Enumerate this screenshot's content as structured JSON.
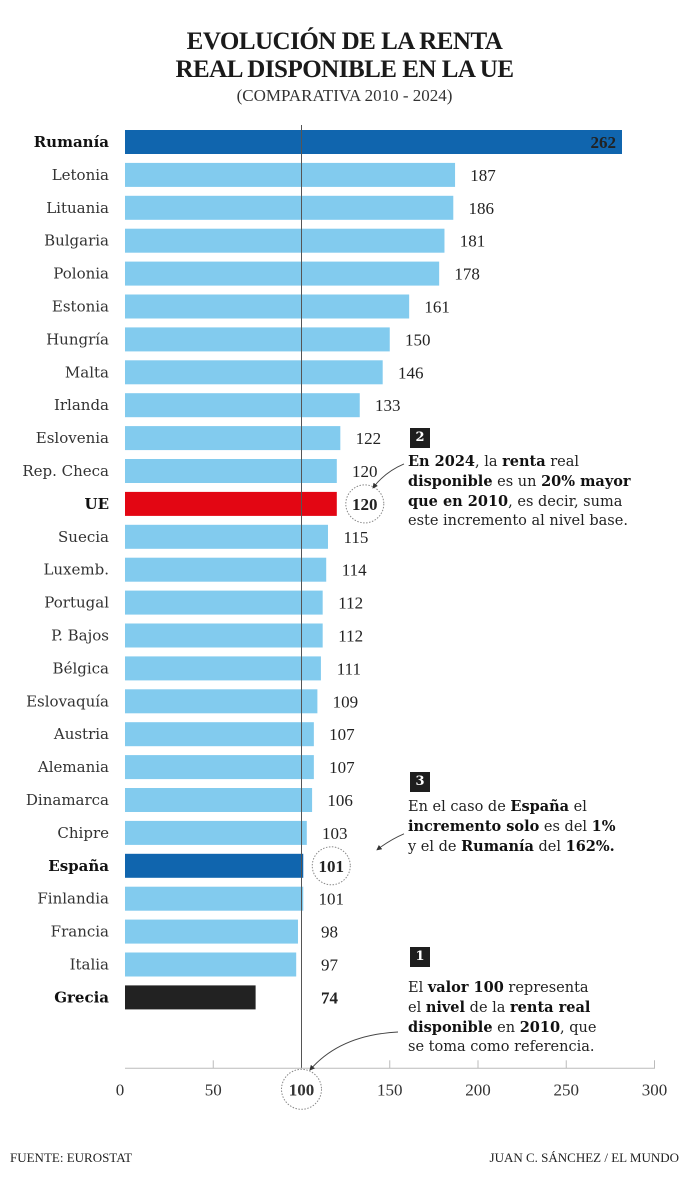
{
  "header": {
    "title_line1": "EVOLUCIÓN DE LA RENTA",
    "title_line2": "REAL DISPONIBLE EN LA UE",
    "subtitle": "(COMPARATIVA 2010 - 2024)"
  },
  "colors": {
    "default_bar": "#82cbee",
    "highlight_blue": "#1065ae",
    "eu_red": "#e30613",
    "greece_black": "#222222",
    "reference_line": "#555555"
  },
  "chart_data": {
    "type": "bar",
    "orientation": "horizontal",
    "title": "EVOLUCIÓN DE LA RENTA REAL DISPONIBLE EN LA UE",
    "subtitle": "(COMPARATIVA 2010 - 2024)",
    "xlabel": "",
    "ylabel": "",
    "xlim": [
      0,
      300
    ],
    "xticks": [
      0,
      50,
      100,
      150,
      200,
      250,
      300
    ],
    "reference_value": 100,
    "grid": false,
    "categories": [
      "Rumanía",
      "Letonia",
      "Lituania",
      "Bulgaria",
      "Polonia",
      "Estonia",
      "Hungría",
      "Malta",
      "Irlanda",
      "Eslovenia",
      "Rep. Checa",
      "UE",
      "Suecia",
      "Luxemb.",
      "Portugal",
      "P. Bajos",
      "Bélgica",
      "Eslovaquía",
      "Austria",
      "Alemania",
      "Dinamarca",
      "Chipre",
      "España",
      "Finlandia",
      "Francia",
      "Italia",
      "Grecia"
    ],
    "values": [
      262,
      187,
      186,
      181,
      178,
      161,
      150,
      146,
      133,
      122,
      120,
      120,
      115,
      114,
      112,
      112,
      111,
      109,
      107,
      107,
      106,
      103,
      101,
      101,
      98,
      97,
      74
    ],
    "highlights": {
      "Rumanía": "highlight_blue",
      "UE": "eu_red",
      "España": "highlight_blue",
      "Grecia": "greece_black"
    },
    "bold_labels": [
      "Rumanía",
      "UE",
      "España",
      "Grecia"
    ],
    "circled_values": [
      "UE",
      "España"
    ]
  },
  "annotations": [
    {
      "number": "2",
      "html": "<b>En 2024</b>, la <b>renta</b> real<br><b>disponible</b> es un <b>20% mayor</b><br><b>que en 2010</b>, es decir, suma<br>este incremento al nivel base."
    },
    {
      "number": "3",
      "html": "En el caso de <b>España</b> el<br><b>incremento solo</b> es del <b>1%</b><br>y el de <b>Rumanía</b> del <b>162%.</b>"
    },
    {
      "number": "1",
      "html": "El <b>valor 100</b> representa<br>el <b>nivel</b> de la <b>renta real</b><br><b>disponible</b> en <b>2010</b>, que<br>se toma como referencia."
    }
  ],
  "footer": {
    "source": "FUENTE: EUROSTAT",
    "credit": "JUAN C. SÁNCHEZ / EL MUNDO"
  }
}
